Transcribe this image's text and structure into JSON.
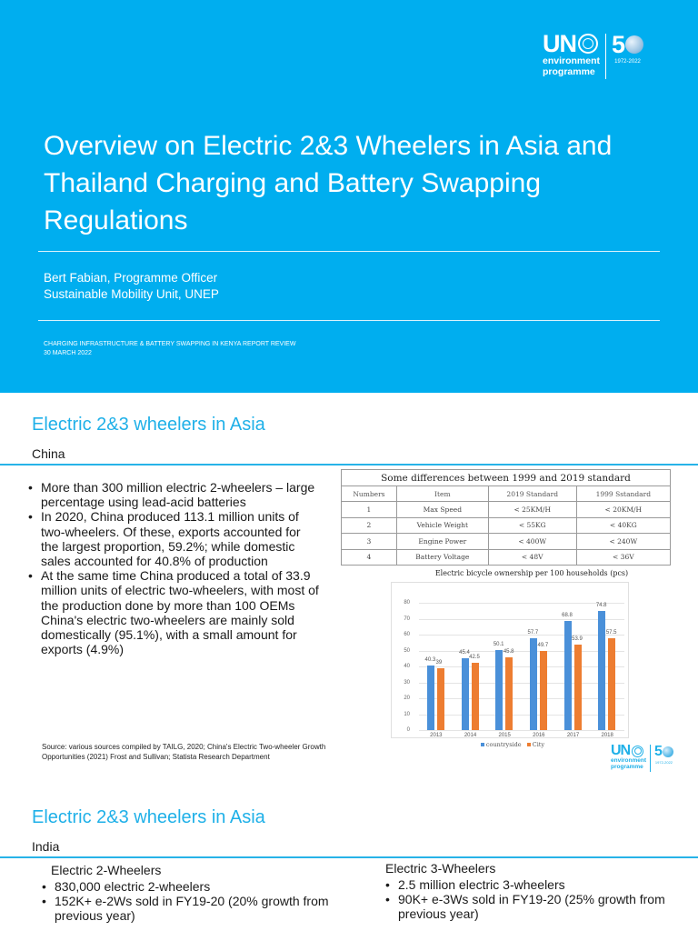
{
  "slide1": {
    "logo": {
      "un": "UN",
      "line1": "environment",
      "line2": "programme",
      "anniversary": "5",
      "years": "1972-2022",
      "emblem_icon": "un-emblem-icon",
      "globe_icon": "globe-icon"
    },
    "title": "Overview on Electric 2&3 Wheelers in Asia and Thailand Charging and Battery Swapping Regulations",
    "author_line1": "Bert Fabian, Programme Officer",
    "author_line2": "Sustainable Mobility Unit, UNEP",
    "event": "CHARGING INFRASTRUCTURE & BATTERY SWAPPING IN KENYA REPORT REVIEW",
    "date": "30 March 2022",
    "background_color": "#00aeef"
  },
  "slide2": {
    "title": "Electric 2&3 wheelers in Asia",
    "subtitle": "China",
    "bullets": [
      "More than 300 million electric 2-wheelers – large percentage using lead-acid batteries",
      "In 2020, China produced 113.1 million units of two-wheelers. Of these, exports accounted for the largest proportion, 59.2%; while domestic sales accounted for 40.8% of production",
      "At the same time China produced a total of 33.9 million units of electric two-wheelers, with most of the production done by more than 100 OEMs China's electric two-wheelers are mainly sold domestically (95.1%), with a small amount for exports (4.9%)"
    ],
    "table": {
      "caption": "Some differences between 1999 and 2019 standard",
      "headers": [
        "Numbers",
        "Item",
        "2019 Standard",
        "1999 Sstandard"
      ],
      "rows": [
        [
          "1",
          "Max Speed",
          "< 25KM/H",
          "< 20KM/H"
        ],
        [
          "2",
          "Vehicle Weight",
          "< 55KG",
          "< 40KG"
        ],
        [
          "3",
          "Engine Power",
          "< 400W",
          "< 240W"
        ],
        [
          "4",
          "Battery Voltage",
          "< 48V",
          "< 36V"
        ]
      ]
    },
    "source": "Source: various sources compiled by TAILG, 2020; China's Electric Two-wheeler Growth Opportunities (2021) Frost and Sullivan; Statista Research Department",
    "logo": {
      "un": "UN",
      "line1": "environment",
      "line2": "programme",
      "anniversary": "5",
      "years": "1972-2022"
    },
    "accent_color": "#1fb0e8"
  },
  "chart_data": {
    "type": "bar",
    "title": "Electric bicycle ownership per 100 households (pcs)",
    "categories": [
      "2013",
      "2014",
      "2015",
      "2016",
      "2017",
      "2018"
    ],
    "series": [
      {
        "name": "countryside",
        "color": "#4a90d9",
        "values": [
          40.3,
          45.4,
          50.1,
          57.7,
          68.8,
          74.8
        ]
      },
      {
        "name": "City",
        "color": "#ed7d31",
        "values": [
          39,
          42.5,
          45.8,
          49.7,
          53.9,
          57.5
        ]
      }
    ],
    "xlabel": "",
    "ylabel": "",
    "ylim": [
      0,
      80
    ],
    "yticks": [
      "0",
      "10",
      "20",
      "30",
      "40",
      "50",
      "60",
      "70",
      "80"
    ],
    "grid": true,
    "legend_position": "bottom"
  },
  "slide3": {
    "title": "Electric 2&3 wheelers in Asia",
    "subtitle": "India",
    "left": {
      "heading": "Electric 2-Wheelers",
      "bullets": [
        "830,000 electric 2-wheelers",
        "152K+ e-2Ws sold in FY19-20 (20% growth from previous year)"
      ]
    },
    "right": {
      "heading": "Electric 3-Wheelers",
      "bullets": [
        "2.5 million electric 3-wheelers",
        "90K+ e-3Ws sold in FY19-20 (25% growth from previous year)"
      ]
    }
  }
}
